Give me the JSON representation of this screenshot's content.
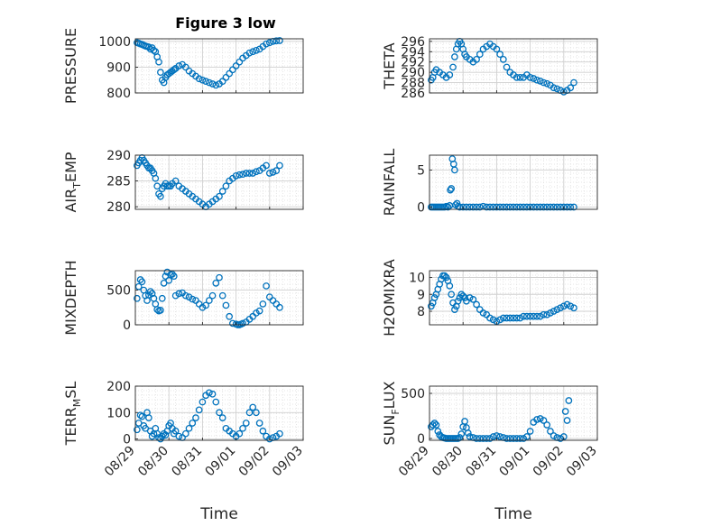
{
  "figure": {
    "title": "Figure 3 low",
    "marker_color": "#0072BD"
  },
  "chart_data": [
    {
      "type": "scatter",
      "ylabel": "PRESSURE",
      "ylabel_main": "PRESSURE",
      "ylabel_sub": "",
      "ylabel_rest": "",
      "ylim": [
        800,
        1010
      ],
      "yticks": [
        800,
        900,
        1000
      ],
      "yticklabels": [
        "800",
        "900",
        "1000"
      ],
      "xlim": [
        0,
        5
      ],
      "xticks": [],
      "xticklabels": [],
      "xlabel": "",
      "x": [
        0.05,
        0.1,
        0.15,
        0.2,
        0.25,
        0.3,
        0.35,
        0.4,
        0.45,
        0.5,
        0.55,
        0.6,
        0.65,
        0.7,
        0.75,
        0.8,
        0.85,
        0.9,
        0.95,
        1.0,
        1.05,
        1.1,
        1.15,
        1.2,
        1.3,
        1.4,
        1.5,
        1.6,
        1.7,
        1.8,
        1.9,
        2.0,
        2.1,
        2.2,
        2.3,
        2.4,
        2.5,
        2.6,
        2.7,
        2.8,
        2.9,
        3.0,
        3.1,
        3.2,
        3.3,
        3.4,
        3.5,
        3.6,
        3.7,
        3.8,
        3.9,
        4.0,
        4.1,
        4.2,
        4.3
      ],
      "y": [
        995,
        993,
        990,
        988,
        985,
        982,
        980,
        978,
        970,
        975,
        965,
        960,
        940,
        920,
        880,
        850,
        840,
        860,
        870,
        875,
        880,
        885,
        890,
        895,
        905,
        910,
        900,
        885,
        875,
        865,
        855,
        850,
        845,
        840,
        835,
        830,
        835,
        845,
        860,
        875,
        890,
        905,
        920,
        935,
        945,
        955,
        960,
        965,
        970,
        980,
        990,
        995,
        1000,
        1002,
        1003
      ]
    },
    {
      "type": "scatter",
      "ylabel": "THETA",
      "ylabel_main": "THETA",
      "ylabel_sub": "",
      "ylabel_rest": "",
      "ylim": [
        286,
        296.5
      ],
      "yticks": [
        286,
        288,
        290,
        292,
        294,
        296
      ],
      "yticklabels": [
        "286",
        "288",
        "290",
        "292",
        "294",
        "296"
      ],
      "xlim": [
        0,
        5
      ],
      "xticks": [],
      "xticklabels": [],
      "xlabel": "",
      "x": [
        0.05,
        0.1,
        0.15,
        0.2,
        0.3,
        0.4,
        0.5,
        0.6,
        0.7,
        0.75,
        0.8,
        0.85,
        0.9,
        0.95,
        1.0,
        1.05,
        1.1,
        1.2,
        1.3,
        1.4,
        1.5,
        1.6,
        1.7,
        1.8,
        1.9,
        2.0,
        2.1,
        2.2,
        2.3,
        2.4,
        2.5,
        2.6,
        2.7,
        2.8,
        2.9,
        3.0,
        3.1,
        3.2,
        3.3,
        3.4,
        3.5,
        3.6,
        3.7,
        3.8,
        3.9,
        4.0,
        4.1,
        4.2,
        4.3
      ],
      "y": [
        288.5,
        289,
        290,
        290.5,
        290,
        289.5,
        289,
        289.5,
        291,
        293,
        294.5,
        295.5,
        296,
        295.5,
        294.5,
        293.5,
        293,
        292.5,
        292,
        292.5,
        293.5,
        294.5,
        295,
        295.5,
        295,
        294.5,
        293.5,
        292.5,
        291,
        290,
        289.5,
        289,
        289,
        289,
        289.5,
        289,
        288.8,
        288.5,
        288.3,
        288,
        287.8,
        287.5,
        287,
        286.8,
        286.5,
        286.2,
        286.5,
        287,
        288
      ]
    },
    {
      "type": "scatter",
      "ylabel": "AIR_TEMP",
      "ylabel_main": "AIR",
      "ylabel_sub": "T",
      "ylabel_rest": "EMP",
      "ylim": [
        279.5,
        290
      ],
      "yticks": [
        280,
        285,
        290
      ],
      "yticklabels": [
        "280",
        "285",
        "290"
      ],
      "xlim": [
        0,
        5
      ],
      "xticks": [],
      "xticklabels": [],
      "xlabel": "",
      "x": [
        0.05,
        0.1,
        0.15,
        0.2,
        0.25,
        0.3,
        0.35,
        0.4,
        0.45,
        0.5,
        0.55,
        0.6,
        0.65,
        0.7,
        0.75,
        0.8,
        0.85,
        0.9,
        0.95,
        1.0,
        1.05,
        1.1,
        1.2,
        1.3,
        1.4,
        1.5,
        1.6,
        1.7,
        1.8,
        1.9,
        2.0,
        2.1,
        2.2,
        2.3,
        2.4,
        2.5,
        2.6,
        2.7,
        2.8,
        2.9,
        3.0,
        3.1,
        3.2,
        3.3,
        3.4,
        3.5,
        3.6,
        3.7,
        3.8,
        3.9,
        4.0,
        4.1,
        4.2,
        4.3
      ],
      "y": [
        288,
        288.5,
        289,
        289.5,
        289,
        288.5,
        288,
        287.5,
        287.5,
        287,
        286.5,
        285.5,
        284,
        282.5,
        282,
        283.5,
        284,
        284.5,
        284,
        284,
        284,
        284.5,
        285,
        284,
        283.5,
        283,
        282.5,
        282,
        281.5,
        281,
        280.5,
        280,
        280.5,
        281,
        281.5,
        282,
        283,
        284,
        285,
        285.5,
        286,
        286.2,
        286.3,
        286.5,
        286.5,
        286.5,
        286.8,
        287,
        287.5,
        288,
        286.5,
        286.7,
        287,
        288
      ]
    },
    {
      "type": "scatter",
      "ylabel": "RAINFALL",
      "ylabel_main": "RAINFALL",
      "ylabel_sub": "",
      "ylabel_rest": "",
      "ylim": [
        -0.3,
        7
      ],
      "yticks": [
        0,
        5
      ],
      "yticklabels": [
        "0",
        "5"
      ],
      "xlim": [
        0,
        5
      ],
      "xticks": [],
      "xticklabels": [],
      "xlabel": "",
      "x": [
        0.05,
        0.1,
        0.15,
        0.2,
        0.25,
        0.3,
        0.35,
        0.4,
        0.45,
        0.5,
        0.55,
        0.6,
        0.62,
        0.65,
        0.68,
        0.72,
        0.75,
        0.78,
        0.82,
        0.85,
        0.9,
        1.0,
        1.1,
        1.2,
        1.3,
        1.4,
        1.5,
        1.6,
        1.7,
        1.8,
        1.9,
        2.0,
        2.1,
        2.2,
        2.3,
        2.4,
        2.5,
        2.6,
        2.7,
        2.8,
        2.9,
        3.0,
        3.1,
        3.2,
        3.3,
        3.4,
        3.5,
        3.6,
        3.7,
        3.8,
        3.9,
        4.0,
        4.1,
        4.2,
        4.3
      ],
      "y": [
        0,
        0,
        0,
        0,
        0,
        0,
        0,
        0,
        0,
        0.1,
        0,
        0.2,
        2.3,
        2.5,
        6.5,
        5.8,
        5.0,
        0.3,
        0.5,
        0.1,
        0,
        0,
        0,
        0,
        0,
        0,
        0,
        0.1,
        0,
        0,
        0,
        0,
        0,
        0,
        0,
        0,
        0,
        0,
        0,
        0,
        0,
        0,
        0,
        0,
        0,
        0,
        0,
        0,
        0,
        0,
        0,
        0,
        0,
        0,
        0
      ]
    },
    {
      "type": "scatter",
      "ylabel": "MIXDEPTH",
      "ylabel_main": "MIXDEPTH",
      "ylabel_sub": "",
      "ylabel_rest": "",
      "ylim": [
        0,
        780
      ],
      "yticks": [
        0,
        500
      ],
      "yticklabels": [
        "0",
        "500"
      ],
      "xlim": [
        0,
        5
      ],
      "xticks": [],
      "xticklabels": [],
      "xlabel": "",
      "x": [
        0.05,
        0.1,
        0.15,
        0.2,
        0.25,
        0.3,
        0.35,
        0.4,
        0.45,
        0.5,
        0.55,
        0.6,
        0.65,
        0.7,
        0.75,
        0.8,
        0.85,
        0.9,
        0.95,
        1.0,
        1.05,
        1.1,
        1.15,
        1.2,
        1.3,
        1.4,
        1.5,
        1.6,
        1.7,
        1.8,
        1.9,
        2.0,
        2.1,
        2.2,
        2.3,
        2.4,
        2.5,
        2.6,
        2.7,
        2.8,
        2.9,
        3.0,
        3.05,
        3.1,
        3.15,
        3.2,
        3.3,
        3.4,
        3.5,
        3.6,
        3.7,
        3.8,
        3.9,
        4.0,
        4.1,
        4.2,
        4.3
      ],
      "y": [
        380,
        550,
        650,
        620,
        500,
        420,
        350,
        430,
        480,
        450,
        380,
        300,
        220,
        200,
        210,
        380,
        600,
        700,
        760,
        640,
        720,
        730,
        700,
        420,
        450,
        460,
        420,
        400,
        370,
        350,
        300,
        250,
        280,
        350,
        420,
        600,
        680,
        420,
        280,
        120,
        20,
        10,
        0,
        0,
        10,
        20,
        40,
        80,
        120,
        170,
        200,
        300,
        560,
        400,
        350,
        300,
        250
      ]
    },
    {
      "type": "scatter",
      "ylabel": "H2OMIXRA",
      "ylabel_main": "H2OMIXRA",
      "ylabel_sub": "",
      "ylabel_rest": "",
      "ylim": [
        7.2,
        10.4
      ],
      "yticks": [
        8,
        9,
        10
      ],
      "yticklabels": [
        "8",
        "9",
        "10"
      ],
      "xlim": [
        0,
        5
      ],
      "xticks": [],
      "xticklabels": [],
      "xlabel": "",
      "x": [
        0.05,
        0.1,
        0.15,
        0.2,
        0.25,
        0.3,
        0.35,
        0.4,
        0.45,
        0.5,
        0.55,
        0.6,
        0.65,
        0.7,
        0.75,
        0.8,
        0.85,
        0.9,
        0.95,
        1.0,
        1.05,
        1.1,
        1.2,
        1.3,
        1.4,
        1.5,
        1.6,
        1.7,
        1.8,
        1.9,
        2.0,
        2.1,
        2.2,
        2.3,
        2.4,
        2.5,
        2.6,
        2.7,
        2.8,
        2.9,
        3.0,
        3.1,
        3.2,
        3.3,
        3.4,
        3.5,
        3.6,
        3.7,
        3.8,
        3.9,
        4.0,
        4.1,
        4.2,
        4.3
      ],
      "y": [
        8.3,
        8.5,
        8.8,
        9.0,
        9.3,
        9.6,
        9.9,
        10.1,
        10.1,
        10.0,
        9.8,
        9.5,
        9.0,
        8.5,
        8.1,
        8.3,
        8.6,
        8.8,
        9.0,
        8.9,
        8.8,
        8.6,
        8.8,
        8.7,
        8.4,
        8.1,
        7.9,
        7.8,
        7.6,
        7.5,
        7.4,
        7.5,
        7.6,
        7.6,
        7.6,
        7.6,
        7.6,
        7.6,
        7.7,
        7.7,
        7.7,
        7.7,
        7.7,
        7.7,
        7.8,
        7.8,
        7.9,
        8.0,
        8.1,
        8.2,
        8.3,
        8.4,
        8.3,
        8.2
      ]
    },
    {
      "type": "scatter",
      "ylabel": "TERR_MSL",
      "ylabel_main": "TERR",
      "ylabel_sub": "M",
      "ylabel_rest": "SL",
      "ylim": [
        -5,
        200
      ],
      "yticks": [
        0,
        100,
        200
      ],
      "yticklabels": [
        "0",
        "100",
        "200"
      ],
      "xlim": [
        0,
        5
      ],
      "xticks": [
        0,
        1,
        2,
        3,
        4,
        5
      ],
      "xticklabels": [
        "08/29",
        "08/30",
        "08/31",
        "09/01",
        "09/02",
        "09/03"
      ],
      "xlabel": "Time",
      "x": [
        0.05,
        0.1,
        0.15,
        0.2,
        0.25,
        0.3,
        0.35,
        0.4,
        0.45,
        0.5,
        0.55,
        0.6,
        0.65,
        0.7,
        0.75,
        0.8,
        0.85,
        0.9,
        0.95,
        1.0,
        1.05,
        1.1,
        1.15,
        1.2,
        1.3,
        1.4,
        1.5,
        1.6,
        1.7,
        1.8,
        1.9,
        2.0,
        2.1,
        2.2,
        2.3,
        2.4,
        2.5,
        2.6,
        2.7,
        2.8,
        2.9,
        3.0,
        3.1,
        3.2,
        3.3,
        3.4,
        3.5,
        3.6,
        3.7,
        3.8,
        3.9,
        4.0,
        4.1,
        4.2,
        4.3
      ],
      "y": [
        35,
        60,
        90,
        85,
        50,
        40,
        100,
        80,
        30,
        10,
        20,
        40,
        20,
        5,
        0,
        10,
        20,
        15,
        30,
        50,
        60,
        40,
        20,
        30,
        10,
        5,
        20,
        40,
        60,
        80,
        110,
        140,
        165,
        175,
        170,
        140,
        100,
        80,
        40,
        30,
        20,
        10,
        20,
        40,
        60,
        100,
        120,
        100,
        60,
        30,
        10,
        0,
        5,
        10,
        20
      ]
    },
    {
      "type": "scatter",
      "ylabel": "SUN_FLUX",
      "ylabel_main": "SUN",
      "ylabel_sub": "F",
      "ylabel_rest": "LUX",
      "ylim": [
        -20,
        580
      ],
      "yticks": [
        0,
        500
      ],
      "yticklabels": [
        "0",
        "500"
      ],
      "xlim": [
        0,
        5
      ],
      "xticks": [
        0,
        1,
        2,
        3,
        4,
        5
      ],
      "xticklabels": [
        "08/29",
        "08/30",
        "08/31",
        "09/01",
        "09/02",
        "09/03"
      ],
      "xlabel": "Time",
      "x": [
        0.05,
        0.1,
        0.15,
        0.2,
        0.25,
        0.3,
        0.35,
        0.4,
        0.45,
        0.5,
        0.55,
        0.6,
        0.65,
        0.7,
        0.75,
        0.8,
        0.85,
        0.9,
        0.95,
        1.0,
        1.05,
        1.1,
        1.15,
        1.2,
        1.3,
        1.4,
        1.5,
        1.6,
        1.7,
        1.8,
        1.9,
        2.0,
        2.1,
        2.2,
        2.3,
        2.4,
        2.5,
        2.6,
        2.7,
        2.8,
        2.9,
        3.0,
        3.1,
        3.2,
        3.3,
        3.4,
        3.5,
        3.6,
        3.7,
        3.8,
        3.9,
        4.0,
        4.05,
        4.1,
        4.15
      ],
      "y": [
        130,
        150,
        170,
        150,
        80,
        40,
        20,
        10,
        5,
        0,
        0,
        0,
        0,
        0,
        0,
        0,
        0,
        10,
        50,
        130,
        190,
        120,
        60,
        20,
        10,
        0,
        0,
        0,
        0,
        0,
        20,
        30,
        20,
        10,
        0,
        0,
        0,
        0,
        0,
        0,
        20,
        80,
        180,
        210,
        220,
        200,
        150,
        80,
        30,
        10,
        0,
        20,
        300,
        200,
        420
      ]
    }
  ]
}
